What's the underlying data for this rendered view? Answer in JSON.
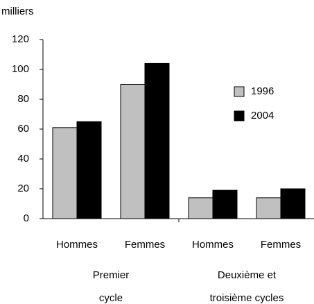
{
  "chart_data": {
    "type": "bar",
    "y_label": "milliers",
    "categories": [
      "Hommes",
      "Femmes",
      "Hommes",
      "Femmes"
    ],
    "groups": [
      {
        "lines": [
          "Premier",
          "cycle"
        ]
      },
      {
        "lines": [
          "Deuxième et",
          "troisième cycles"
        ]
      }
    ],
    "series": [
      {
        "name": "1996",
        "color": "#c0c0c0",
        "values": [
          61,
          90,
          14,
          14
        ]
      },
      {
        "name": "2004",
        "color": "#000000",
        "values": [
          65,
          104,
          19,
          20
        ]
      }
    ],
    "ylim": [
      0,
      120
    ],
    "yticks": [
      0,
      20,
      40,
      60,
      80,
      100,
      120
    ],
    "grid": false,
    "legend": "right"
  }
}
